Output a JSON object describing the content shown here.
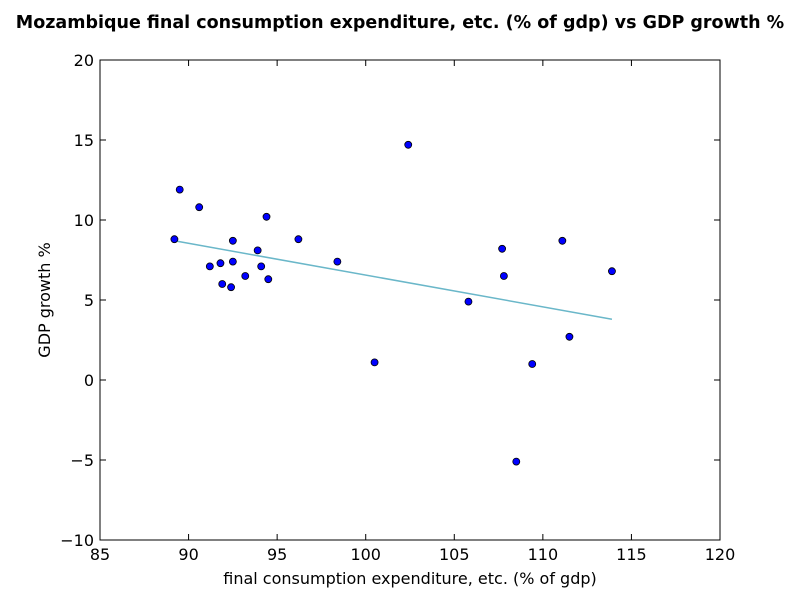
{
  "chart_data": {
    "type": "scatter",
    "title": "Mozambique final consumption expenditure, etc. (% of gdp) vs GDP growth %",
    "xlabel": "final consumption expenditure, etc. (% of gdp)",
    "ylabel": "GDP growth %",
    "xlim": [
      85,
      120
    ],
    "ylim": [
      -10,
      20
    ],
    "xticks": [
      85,
      90,
      95,
      100,
      105,
      110,
      115,
      120
    ],
    "yticks": [
      -10,
      -5,
      0,
      5,
      10,
      15,
      20
    ],
    "grid": false,
    "series": [
      {
        "points": [
          [
            89.2,
            8.8
          ],
          [
            89.5,
            11.9
          ],
          [
            90.6,
            10.8
          ],
          [
            91.2,
            7.1
          ],
          [
            91.8,
            7.3
          ],
          [
            91.9,
            6.0
          ],
          [
            92.4,
            5.8
          ],
          [
            92.5,
            8.7
          ],
          [
            92.5,
            7.4
          ],
          [
            93.2,
            6.5
          ],
          [
            93.9,
            8.1
          ],
          [
            94.1,
            7.1
          ],
          [
            94.4,
            10.2
          ],
          [
            94.5,
            6.3
          ],
          [
            96.2,
            8.8
          ],
          [
            98.4,
            7.4
          ],
          [
            100.5,
            1.1
          ],
          [
            102.4,
            14.7
          ],
          [
            105.8,
            4.9
          ],
          [
            107.7,
            8.2
          ],
          [
            107.8,
            6.5
          ],
          [
            108.5,
            -5.1
          ],
          [
            109.4,
            1.0
          ],
          [
            111.1,
            8.7
          ],
          [
            111.5,
            2.7
          ],
          [
            113.9,
            6.8
          ]
        ]
      }
    ],
    "trendline": {
      "x": [
        89.2,
        113.9
      ],
      "y": [
        8.7,
        3.8
      ]
    },
    "colors": {
      "marker": "#0000ff",
      "marker_edge": "#000000",
      "trendline": "#6ab7c9"
    }
  }
}
